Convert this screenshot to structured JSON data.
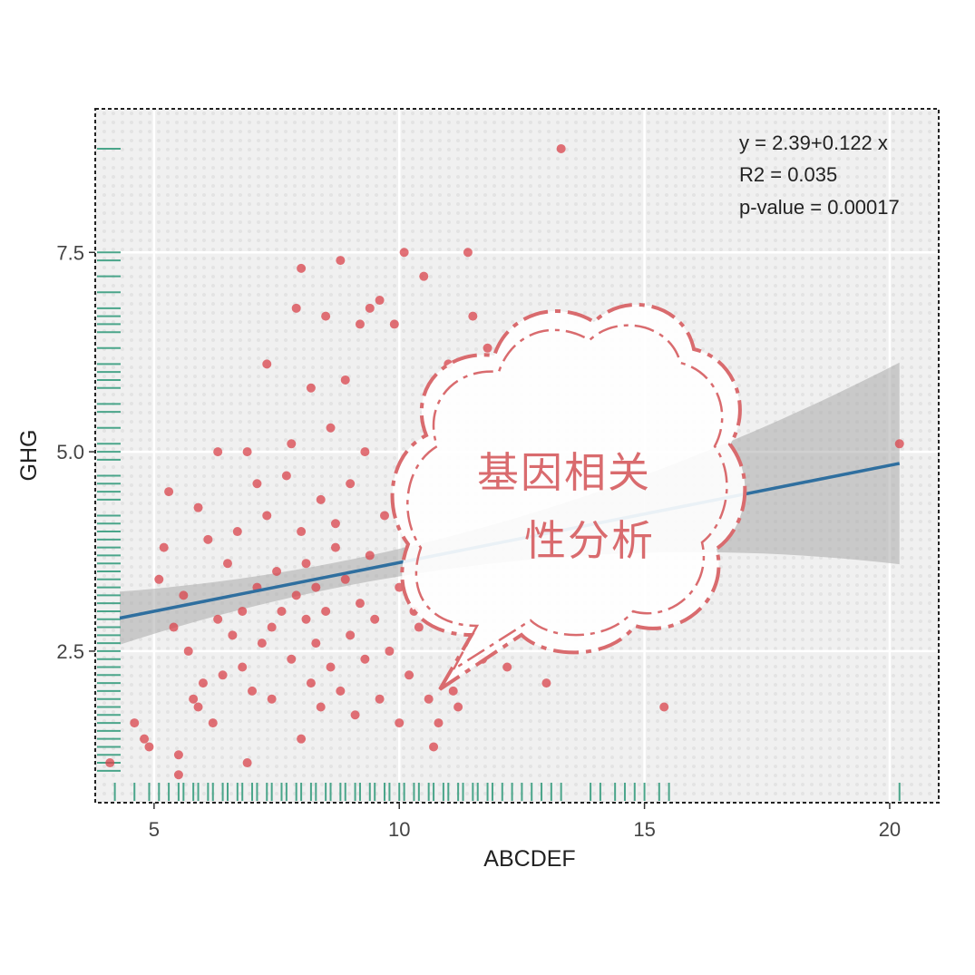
{
  "chart_data": {
    "type": "scatter",
    "title": "",
    "xlabel": "ABCDEF",
    "ylabel": "GHG",
    "xlim": [
      3.8,
      21.0
    ],
    "ylim": [
      0.6,
      9.3
    ],
    "xticks": [
      5,
      10,
      15,
      20
    ],
    "xtick_labels": [
      "5",
      "10",
      "15",
      "20"
    ],
    "yticks": [
      2.5,
      5.0,
      7.5
    ],
    "ytick_labels": [
      "2.5",
      "5.0",
      "7.5"
    ],
    "grid": true,
    "legend": "none",
    "colors": {
      "points": "#d9434b",
      "fit_line": "#2f6f9f",
      "confidence_band": "#aaaaaa",
      "rug": "#4aa58a",
      "panel_background": "#ececec",
      "stamp": "#d96b6e"
    },
    "regression": {
      "intercept": 2.39,
      "slope": 0.122,
      "x_range": [
        4.3,
        20.2
      ]
    },
    "annotations": [
      "y = 2.39+0.122 x",
      "R2 = 0.035",
      "p-value = 0.00017"
    ],
    "stamp_text": [
      "基因相关",
      "性分析"
    ],
    "points": [
      [
        4.1,
        1.1
      ],
      [
        4.6,
        1.6
      ],
      [
        4.8,
        1.4
      ],
      [
        4.9,
        1.3
      ],
      [
        5.1,
        3.4
      ],
      [
        5.2,
        3.8
      ],
      [
        5.3,
        4.5
      ],
      [
        5.4,
        2.8
      ],
      [
        5.5,
        1.2
      ],
      [
        5.5,
        0.95
      ],
      [
        5.6,
        3.2
      ],
      [
        5.7,
        2.5
      ],
      [
        5.8,
        1.9
      ],
      [
        5.9,
        4.3
      ],
      [
        5.9,
        1.8
      ],
      [
        6.0,
        2.1
      ],
      [
        6.1,
        3.9
      ],
      [
        6.2,
        1.6
      ],
      [
        6.3,
        5.0
      ],
      [
        6.3,
        2.9
      ],
      [
        6.4,
        2.2
      ],
      [
        6.5,
        3.6
      ],
      [
        6.6,
        2.7
      ],
      [
        6.7,
        4.0
      ],
      [
        6.8,
        3.0
      ],
      [
        6.8,
        2.3
      ],
      [
        6.9,
        1.1
      ],
      [
        6.9,
        5.0
      ],
      [
        7.0,
        2.0
      ],
      [
        7.1,
        4.6
      ],
      [
        7.1,
        3.3
      ],
      [
        7.2,
        2.6
      ],
      [
        7.3,
        6.1
      ],
      [
        7.3,
        4.2
      ],
      [
        7.4,
        2.8
      ],
      [
        7.4,
        1.9
      ],
      [
        7.5,
        3.5
      ],
      [
        7.6,
        3.0
      ],
      [
        7.7,
        4.7
      ],
      [
        7.8,
        2.4
      ],
      [
        7.8,
        5.1
      ],
      [
        7.9,
        6.8
      ],
      [
        7.9,
        3.2
      ],
      [
        8.0,
        4.0
      ],
      [
        8.0,
        1.4
      ],
      [
        8.0,
        7.3
      ],
      [
        8.1,
        2.9
      ],
      [
        8.1,
        3.6
      ],
      [
        8.2,
        5.8
      ],
      [
        8.2,
        2.1
      ],
      [
        8.3,
        3.3
      ],
      [
        8.3,
        2.6
      ],
      [
        8.4,
        4.4
      ],
      [
        8.4,
        1.8
      ],
      [
        8.5,
        6.7
      ],
      [
        8.5,
        3.0
      ],
      [
        8.6,
        2.3
      ],
      [
        8.6,
        5.3
      ],
      [
        8.7,
        3.8
      ],
      [
        8.7,
        4.1
      ],
      [
        8.8,
        2.0
      ],
      [
        8.8,
        7.4
      ],
      [
        8.9,
        3.4
      ],
      [
        8.9,
        5.9
      ],
      [
        9.0,
        2.7
      ],
      [
        9.0,
        4.6
      ],
      [
        9.1,
        1.7
      ],
      [
        9.2,
        6.6
      ],
      [
        9.2,
        3.1
      ],
      [
        9.3,
        2.4
      ],
      [
        9.3,
        5.0
      ],
      [
        9.4,
        6.8
      ],
      [
        9.4,
        3.7
      ],
      [
        9.5,
        2.9
      ],
      [
        9.6,
        6.9
      ],
      [
        9.6,
        1.9
      ],
      [
        9.7,
        4.2
      ],
      [
        9.8,
        2.5
      ],
      [
        9.9,
        6.6
      ],
      [
        10.0,
        3.3
      ],
      [
        10.0,
        1.6
      ],
      [
        10.1,
        7.5
      ],
      [
        10.2,
        2.2
      ],
      [
        10.3,
        3.0
      ],
      [
        10.4,
        2.8
      ],
      [
        10.5,
        7.2
      ],
      [
        10.6,
        1.9
      ],
      [
        10.7,
        1.3
      ],
      [
        10.8,
        1.6
      ],
      [
        11.0,
        6.1
      ],
      [
        11.1,
        2.0
      ],
      [
        11.2,
        1.8
      ],
      [
        11.4,
        7.5
      ],
      [
        11.5,
        6.7
      ],
      [
        11.7,
        2.4
      ],
      [
        11.8,
        6.3
      ],
      [
        12.2,
        2.3
      ],
      [
        13.0,
        2.1
      ],
      [
        13.3,
        8.8
      ],
      [
        15.4,
        1.8
      ],
      [
        20.2,
        5.1
      ]
    ],
    "rug_x": [
      4.2,
      4.6,
      4.9,
      5.1,
      5.3,
      5.5,
      5.6,
      5.8,
      5.9,
      6.1,
      6.2,
      6.4,
      6.5,
      6.7,
      6.8,
      7.0,
      7.1,
      7.3,
      7.4,
      7.6,
      7.7,
      7.9,
      8.0,
      8.2,
      8.3,
      8.5,
      8.6,
      8.8,
      8.9,
      9.1,
      9.2,
      9.4,
      9.5,
      9.7,
      9.8,
      10.0,
      10.1,
      10.3,
      10.4,
      10.6,
      10.7,
      10.9,
      11.0,
      11.2,
      11.3,
      11.5,
      11.6,
      11.8,
      11.9,
      12.1,
      12.3,
      12.5,
      12.7,
      12.9,
      13.1,
      13.3,
      13.9,
      14.1,
      14.4,
      14.6,
      14.8,
      15.0,
      15.3,
      15.5,
      20.2
    ],
    "rug_y": [
      8.8,
      7.5,
      7.4,
      7.2,
      7.0,
      6.8,
      6.7,
      6.6,
      6.5,
      6.3,
      6.1,
      6.0,
      5.9,
      5.8,
      5.6,
      5.5,
      5.3,
      5.1,
      5.0,
      4.9,
      4.7,
      4.6,
      4.5,
      4.4,
      4.2,
      4.1,
      4.0,
      3.9,
      3.8,
      3.7,
      3.6,
      3.5,
      3.4,
      3.3,
      3.2,
      3.1,
      3.0,
      2.9,
      2.8,
      2.7,
      2.6,
      2.5,
      2.4,
      2.3,
      2.2,
      2.1,
      2.0,
      1.9,
      1.8,
      1.7,
      1.6,
      1.5,
      1.4,
      1.3,
      1.2,
      1.1,
      1.0
    ]
  }
}
